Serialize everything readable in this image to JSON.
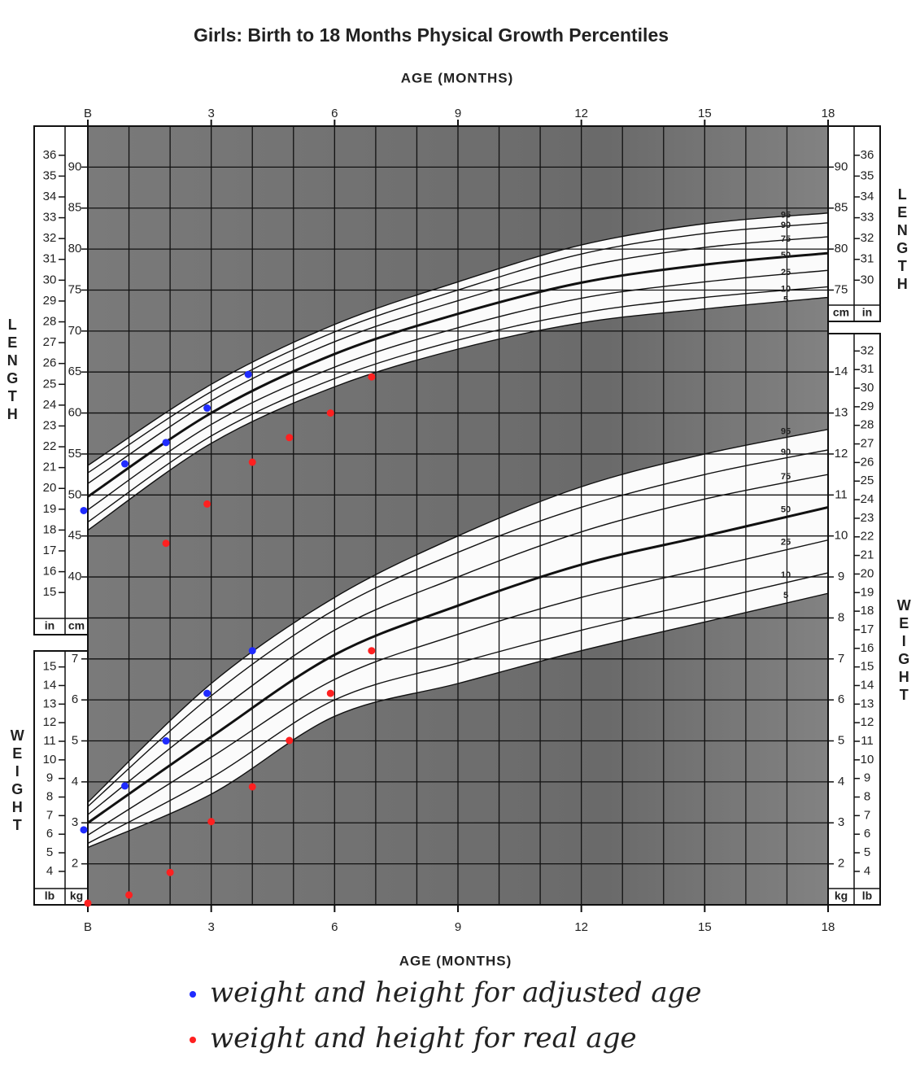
{
  "chart_data": [
    {
      "type": "scatter",
      "title": "Girls: Birth to 18 Months Physical Growth Percentiles",
      "xlabel": "AGE (MONTHS)",
      "xlim": [
        0,
        18
      ],
      "xticks": [
        {
          "value": 0,
          "label": "B"
        },
        3,
        6,
        9,
        12,
        15,
        18
      ],
      "ylabel": "LENGTH",
      "yunit": "cm",
      "y2unit": "in",
      "ylim": [
        0,
        95
      ],
      "y2lim": [
        0,
        37.4
      ],
      "yticks": [
        40,
        45,
        50,
        55,
        60,
        65,
        70,
        75,
        80,
        85,
        90
      ],
      "yticks_right": [
        75,
        80,
        85,
        90
      ],
      "y2ticks": [
        15,
        16,
        17,
        18,
        19,
        20,
        21,
        22,
        23,
        24,
        25,
        26,
        27,
        28,
        29,
        30,
        31,
        32,
        33,
        34,
        35,
        36
      ],
      "y2ticks_right": [
        30,
        31,
        32,
        33,
        34,
        35,
        36
      ],
      "curve_x": [
        0,
        3,
        6,
        9,
        12,
        15,
        18
      ],
      "curves": [
        {
          "name": "95",
          "values": [
            53.6,
            63.5,
            70.8,
            76.0,
            80.5,
            83.1,
            84.4
          ]
        },
        {
          "name": "90",
          "values": [
            52.7,
            62.6,
            69.9,
            75.0,
            79.4,
            81.9,
            83.2
          ]
        },
        {
          "name": "75",
          "values": [
            51.4,
            61.5,
            68.7,
            73.7,
            77.8,
            80.2,
            81.5
          ]
        },
        {
          "name": "50",
          "values": [
            49.8,
            60.0,
            67.2,
            72.1,
            75.9,
            78.1,
            79.5
          ]
        },
        {
          "name": "25",
          "values": [
            48.2,
            58.6,
            65.6,
            70.4,
            74.0,
            76.0,
            77.4
          ]
        },
        {
          "name": "10",
          "values": [
            46.7,
            57.2,
            64.2,
            68.9,
            72.2,
            74.1,
            75.4
          ]
        },
        {
          "name": "5",
          "values": [
            45.7,
            56.3,
            63.2,
            67.8,
            71.0,
            72.7,
            74.1
          ]
        }
      ],
      "series": [
        {
          "name": "weight and height for adjusted age",
          "color": "#1f2bff",
          "x": [
            -0.1,
            0.9,
            1.9,
            2.9,
            3.9
          ],
          "values": [
            48.1,
            53.8,
            56.4,
            60.6,
            64.7
          ]
        },
        {
          "name": "weight and height for real age",
          "color": "#ff2020",
          "x": [
            1.9,
            2.9,
            4.0,
            4.9,
            5.9,
            6.9
          ],
          "values": [
            44.1,
            48.9,
            54.0,
            57.0,
            60.0,
            64.4
          ]
        }
      ]
    },
    {
      "type": "scatter",
      "ylabel": "WEIGHT",
      "yunit": "kg",
      "y2unit": "lb",
      "ylim": [
        1,
        20
      ],
      "y2lim": [
        2.2,
        44.1
      ],
      "yticks": [
        2,
        3,
        4,
        5,
        6,
        7
      ],
      "yticks_right": [
        2,
        3,
        4,
        5,
        6,
        7,
        8,
        9,
        10,
        11,
        12,
        13,
        14
      ],
      "y2ticks": [
        4,
        5,
        6,
        7,
        8,
        9,
        10,
        11,
        12,
        13,
        14,
        15
      ],
      "y2ticks_right": [
        4,
        5,
        6,
        7,
        8,
        9,
        10,
        11,
        12,
        13,
        14,
        15,
        16,
        17,
        18,
        19,
        20,
        21,
        22,
        23,
        24,
        25,
        26,
        27,
        28,
        29,
        30,
        31,
        32
      ],
      "curve_x": [
        0,
        3,
        6,
        9,
        12,
        15,
        18
      ],
      "curves": [
        {
          "name": "95",
          "values": [
            3.5,
            6.4,
            8.5,
            10.0,
            11.2,
            12.0,
            12.6
          ]
        },
        {
          "name": "90",
          "values": [
            3.4,
            6.1,
            8.2,
            9.6,
            10.7,
            11.5,
            12.1
          ]
        },
        {
          "name": "75",
          "values": [
            3.2,
            5.6,
            7.7,
            9.0,
            10.1,
            10.9,
            11.5
          ]
        },
        {
          "name": "50",
          "values": [
            3.0,
            5.1,
            7.1,
            8.3,
            9.3,
            10.0,
            10.7
          ]
        },
        {
          "name": "25",
          "values": [
            2.7,
            4.6,
            6.5,
            7.6,
            8.5,
            9.2,
            9.9
          ]
        },
        {
          "name": "10",
          "values": [
            2.5,
            4.1,
            6.0,
            6.9,
            7.7,
            8.4,
            9.1
          ]
        },
        {
          "name": "5",
          "values": [
            2.4,
            3.7,
            5.6,
            6.4,
            7.2,
            7.9,
            8.6
          ]
        }
      ],
      "series": [
        {
          "color": "#1f2bff",
          "x": [
            -0.1,
            0.9,
            1.9,
            2.9,
            4.0
          ],
          "values": [
            2.83,
            3.9,
            5.0,
            6.16,
            7.2
          ]
        },
        {
          "color": "#ff2020",
          "x": [
            0,
            1.0,
            2.0,
            3.0,
            4.0,
            4.9,
            5.9,
            6.9
          ],
          "values": [
            1.04,
            1.24,
            1.79,
            3.03,
            3.88,
            5.01,
            6.16,
            7.2
          ]
        }
      ]
    }
  ]
}
